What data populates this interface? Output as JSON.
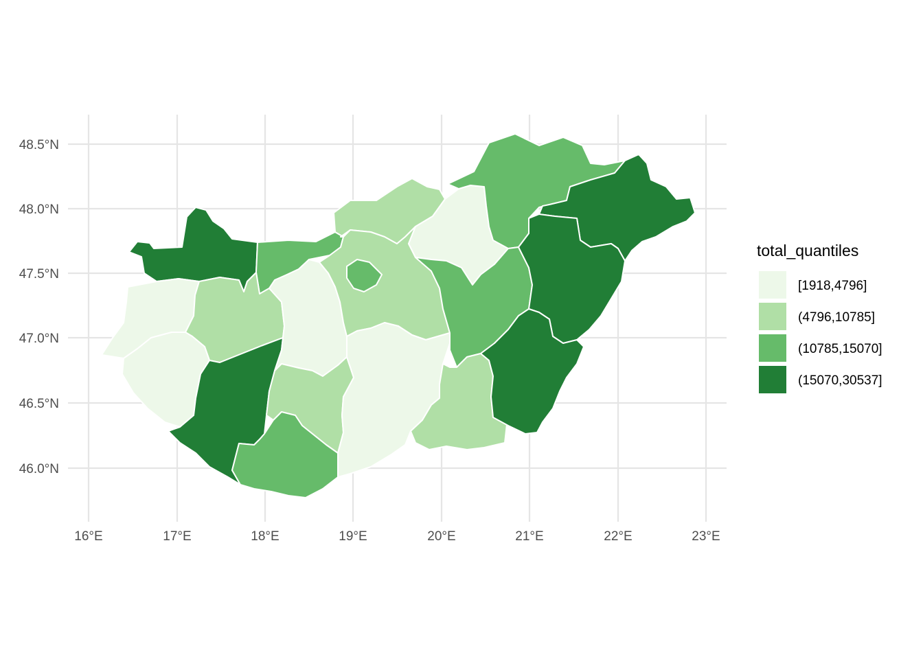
{
  "map": {
    "axes": {
      "x_ticks": [
        "16°E",
        "17°E",
        "18°E",
        "19°E",
        "20°E",
        "21°E",
        "22°E",
        "23°E"
      ],
      "y_ticks": [
        "48.5°N",
        "48.0°N",
        "47.5°N",
        "47.0°N",
        "46.5°N",
        "46.0°N"
      ],
      "grid": true
    },
    "legend": {
      "title": "total_quantiles",
      "position": "right",
      "classes": [
        {
          "label": "[1918,4796]",
          "color": "#edf8e9"
        },
        {
          "label": "(4796,10785]",
          "color": "#b0dfa6"
        },
        {
          "label": "(10785,15070]",
          "color": "#66bb6a"
        },
        {
          "label": "(15070,30537]",
          "color": "#217e36"
        }
      ]
    },
    "counties": [
      {
        "name": "gyor-moson-sopron",
        "class": 3
      },
      {
        "name": "komarom-esztergom",
        "class": 2
      },
      {
        "name": "vas",
        "class": 0
      },
      {
        "name": "veszprem",
        "class": 1
      },
      {
        "name": "zala",
        "class": 0
      },
      {
        "name": "somogy",
        "class": 3
      },
      {
        "name": "fejer",
        "class": 0
      },
      {
        "name": "tolna",
        "class": 1
      },
      {
        "name": "baranya",
        "class": 2
      },
      {
        "name": "nograd",
        "class": 1
      },
      {
        "name": "pest",
        "class": 1
      },
      {
        "name": "budapest",
        "class": 2
      },
      {
        "name": "bacs-kiskun",
        "class": 0
      },
      {
        "name": "heves",
        "class": 0
      },
      {
        "name": "borsod-abauj-zemplen",
        "class": 2
      },
      {
        "name": "jasz-nagykun-szolnok",
        "class": 2
      },
      {
        "name": "csongrad",
        "class": 1
      },
      {
        "name": "szabolcs-szatmar-bereg",
        "class": 3
      },
      {
        "name": "hajdu-bihar",
        "class": 3
      },
      {
        "name": "bekes",
        "class": 3
      }
    ]
  }
}
